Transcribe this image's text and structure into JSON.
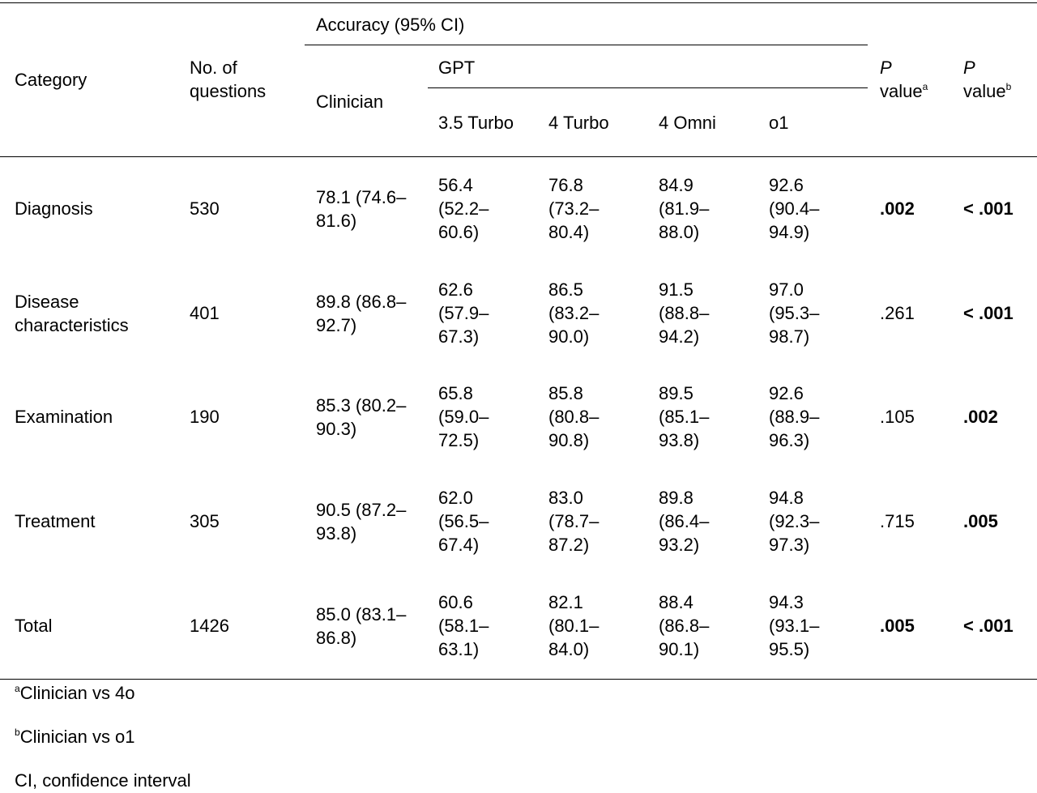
{
  "header": {
    "category": "Category",
    "num_questions_line1": "No. of",
    "num_questions_line2": "questions",
    "accuracy": "Accuracy (95% CI)",
    "gpt": "GPT",
    "clinician": "Clinician",
    "models": [
      "3.5 Turbo",
      "4 Turbo",
      "4 Omni",
      "o1"
    ],
    "p_italic": "P",
    "p_value": "value",
    "sup_a": "a",
    "sup_b": "b"
  },
  "rows": [
    {
      "category": [
        "Diagnosis"
      ],
      "n": "530",
      "clinician": [
        "78.1 (74.6–",
        "81.6)"
      ],
      "gpt35": [
        "56.4",
        "(52.2–",
        "60.6)"
      ],
      "gpt4t": [
        "76.8",
        "(73.2–",
        "80.4)"
      ],
      "gpt4o": [
        "84.9",
        "(81.9–",
        "88.0)"
      ],
      "o1": [
        "92.6",
        "(90.4–",
        "94.9)"
      ],
      "p_a": ".002",
      "p_a_bold": true,
      "p_b": "< .001",
      "p_b_bold": true
    },
    {
      "category": [
        "Disease",
        "characteristics"
      ],
      "n": "401",
      "clinician": [
        "89.8 (86.8–",
        "92.7)"
      ],
      "gpt35": [
        "62.6",
        "(57.9–",
        "67.3)"
      ],
      "gpt4t": [
        "86.5",
        "(83.2–",
        "90.0)"
      ],
      "gpt4o": [
        "91.5",
        "(88.8–",
        "94.2)"
      ],
      "o1": [
        "97.0",
        "(95.3–",
        "98.7)"
      ],
      "p_a": ".261",
      "p_a_bold": false,
      "p_b": "< .001",
      "p_b_bold": true
    },
    {
      "category": [
        "Examination"
      ],
      "n": "190",
      "clinician": [
        "85.3 (80.2–",
        "90.3)"
      ],
      "gpt35": [
        "65.8",
        "(59.0–",
        "72.5)"
      ],
      "gpt4t": [
        "85.8",
        "(80.8–",
        "90.8)"
      ],
      "gpt4o": [
        "89.5",
        "(85.1–",
        "93.8)"
      ],
      "o1": [
        "92.6",
        "(88.9–",
        "96.3)"
      ],
      "p_a": ".105",
      "p_a_bold": false,
      "p_b": ".002",
      "p_b_bold": true
    },
    {
      "category": [
        "Treatment"
      ],
      "n": "305",
      "clinician": [
        "90.5 (87.2–",
        "93.8)"
      ],
      "gpt35": [
        "62.0",
        "(56.5–",
        "67.4)"
      ],
      "gpt4t": [
        "83.0",
        "(78.7–",
        "87.2)"
      ],
      "gpt4o": [
        "89.8",
        "(86.4–",
        "93.2)"
      ],
      "o1": [
        "94.8",
        "(92.3–",
        "97.3)"
      ],
      "p_a": ".715",
      "p_a_bold": false,
      "p_b": ".005",
      "p_b_bold": true
    },
    {
      "category": [
        "Total"
      ],
      "n": "1426",
      "clinician": [
        "85.0 (83.1–",
        "86.8)"
      ],
      "gpt35": [
        "60.6",
        "(58.1–",
        "63.1)"
      ],
      "gpt4t": [
        "82.1",
        "(80.1–",
        "84.0)"
      ],
      "gpt4o": [
        "88.4",
        "(86.8–",
        "90.1)"
      ],
      "o1": [
        "94.3",
        "(93.1–",
        "95.5)"
      ],
      "p_a": ".005",
      "p_a_bold": true,
      "p_b": "< .001",
      "p_b_bold": true
    }
  ],
  "footnotes": {
    "a_mark": "a",
    "a_text": "Clinician vs 4o",
    "b_mark": "b",
    "b_text": "Clinician vs o1",
    "ci_text": "CI, confidence interval"
  }
}
